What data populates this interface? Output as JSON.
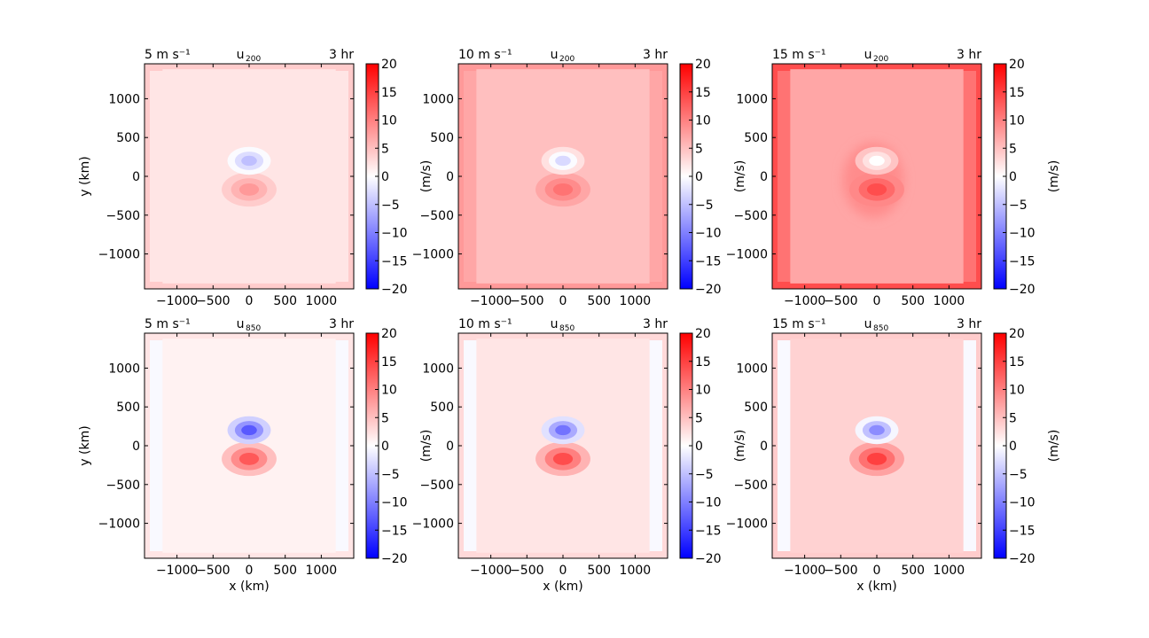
{
  "colors": {
    "min": "#0000ff",
    "zero": "#ffffff",
    "max": "#ff0000",
    "axis": "#000000"
  },
  "colormap": "bwr",
  "shared_axes": {
    "x_ticks": [
      -1000,
      -500,
      0,
      500,
      1000
    ],
    "y_ticks": [
      -1000,
      -500,
      0,
      500,
      1000
    ],
    "x_range": [
      -1450,
      1450
    ],
    "y_range": [
      -1450,
      1450
    ],
    "x_label": "x (km)",
    "y_label": "y (km)",
    "colorbar_ticks": [
      20,
      15,
      10,
      5,
      0,
      -5,
      -10,
      -15,
      -20
    ],
    "colorbar_label": "(m/s)",
    "colorbar_range": [
      -20,
      20
    ]
  },
  "chart_data": [
    {
      "type": "heatmap",
      "left_title": "5 m s⁻¹",
      "center_title": "u",
      "subscript": "200",
      "right_title": "3 hr",
      "background_value": 2,
      "boundary_value": 4,
      "edge_strip_value": 2,
      "negative_lobe_peak": -5,
      "positive_lobe_peak": 8,
      "broad_anomaly_value": 0
    },
    {
      "type": "heatmap",
      "left_title": "10 m s⁻¹",
      "center_title": "u",
      "subscript": "200",
      "right_title": "3 hr",
      "background_value": 5,
      "boundary_value": 8,
      "edge_strip_value": 7,
      "negative_lobe_peak": -3,
      "positive_lobe_peak": 11,
      "broad_anomaly_value": 0
    },
    {
      "type": "heatmap",
      "left_title": "15 m s⁻¹",
      "center_title": "u",
      "subscript": "200",
      "right_title": "3 hr",
      "background_value": 7,
      "boundary_value": 14,
      "edge_strip_value": 11,
      "negative_lobe_peak": 0,
      "positive_lobe_peak": 14,
      "broad_anomaly_value": 9
    },
    {
      "type": "heatmap",
      "left_title": "5 m s⁻¹",
      "center_title": "u",
      "subscript": "850",
      "right_title": "3 hr",
      "background_value": 1,
      "boundary_value": 2,
      "edge_strip_value": -0.5,
      "negative_lobe_peak": -13,
      "positive_lobe_peak": 13,
      "broad_anomaly_value": 0
    },
    {
      "type": "heatmap",
      "left_title": "10 m s⁻¹",
      "center_title": "u",
      "subscript": "850",
      "right_title": "3 hr",
      "background_value": 2,
      "boundary_value": 3,
      "edge_strip_value": -0.5,
      "negative_lobe_peak": -11,
      "positive_lobe_peak": 14,
      "broad_anomaly_value": 0
    },
    {
      "type": "heatmap",
      "left_title": "15 m s⁻¹",
      "center_title": "u",
      "subscript": "850",
      "right_title": "3 hr",
      "background_value": 3.5,
      "boundary_value": 4,
      "edge_strip_value": -0.5,
      "negative_lobe_peak": -9,
      "positive_lobe_peak": 15,
      "broad_anomaly_value": 0
    }
  ]
}
